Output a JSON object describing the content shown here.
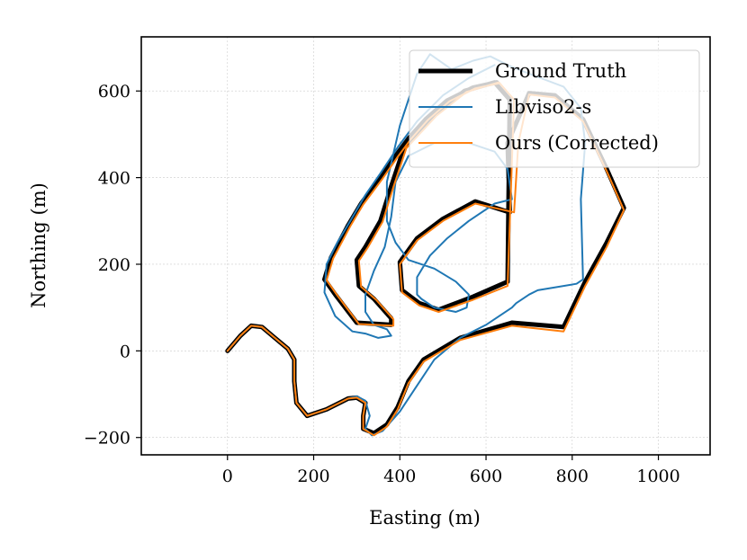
{
  "chart_data": {
    "type": "line",
    "title": "",
    "xlabel": "Easting (m)",
    "ylabel": "Northing (m)",
    "xlim": [
      -200,
      1120
    ],
    "ylim": [
      -240,
      725
    ],
    "xticks": [
      0,
      200,
      400,
      600,
      800,
      1000
    ],
    "yticks": [
      -200,
      0,
      200,
      400,
      600
    ],
    "xtick_labels": [
      "0",
      "200",
      "400",
      "600",
      "800",
      "1000"
    ],
    "ytick_labels": [
      "−200",
      "0",
      "200",
      "400",
      "600"
    ],
    "grid": true,
    "legend_position": "top-right",
    "series": [
      {
        "name": "Ground Truth",
        "color": "#000000",
        "points": [
          [
            0,
            0
          ],
          [
            30,
            35
          ],
          [
            55,
            58
          ],
          [
            80,
            55
          ],
          [
            110,
            30
          ],
          [
            140,
            5
          ],
          [
            155,
            -20
          ],
          [
            155,
            -70
          ],
          [
            160,
            -120
          ],
          [
            185,
            -150
          ],
          [
            230,
            -135
          ],
          [
            280,
            -110
          ],
          [
            300,
            -108
          ],
          [
            320,
            -120
          ],
          [
            315,
            -150
          ],
          [
            315,
            -180
          ],
          [
            340,
            -190
          ],
          [
            370,
            -170
          ],
          [
            395,
            -130
          ],
          [
            420,
            -70
          ],
          [
            455,
            -20
          ],
          [
            540,
            30
          ],
          [
            660,
            65
          ],
          [
            780,
            55
          ],
          [
            830,
            160
          ],
          [
            880,
            250
          ],
          [
            920,
            330
          ],
          [
            880,
            420
          ],
          [
            825,
            535
          ],
          [
            760,
            590
          ],
          [
            700,
            595
          ],
          [
            650,
            480
          ],
          [
            655,
            320
          ],
          [
            575,
            345
          ],
          [
            500,
            305
          ],
          [
            440,
            260
          ],
          [
            400,
            205
          ],
          [
            405,
            140
          ],
          [
            445,
            110
          ],
          [
            490,
            95
          ],
          [
            570,
            125
          ],
          [
            650,
            160
          ],
          [
            655,
            580
          ],
          [
            620,
            620
          ],
          [
            550,
            600
          ],
          [
            480,
            545
          ],
          [
            410,
            470
          ],
          [
            380,
            380
          ],
          [
            355,
            300
          ],
          [
            320,
            240
          ],
          [
            300,
            210
          ],
          [
            305,
            150
          ],
          [
            340,
            120
          ],
          [
            380,
            75
          ],
          [
            380,
            60
          ],
          [
            300,
            65
          ],
          [
            250,
            130
          ],
          [
            225,
            165
          ],
          [
            240,
            215
          ],
          [
            280,
            290
          ],
          [
            310,
            340
          ],
          [
            355,
            400
          ],
          [
            390,
            450
          ],
          [
            420,
            490
          ],
          [
            460,
            535
          ],
          [
            510,
            578
          ],
          [
            570,
            608
          ],
          [
            625,
            620
          ]
        ]
      },
      {
        "name": "Libviso2-s",
        "color": "#1f77b4",
        "points": [
          [
            0,
            0
          ],
          [
            30,
            35
          ],
          [
            55,
            58
          ],
          [
            80,
            55
          ],
          [
            110,
            30
          ],
          [
            140,
            5
          ],
          [
            155,
            -20
          ],
          [
            155,
            -70
          ],
          [
            160,
            -120
          ],
          [
            185,
            -150
          ],
          [
            230,
            -135
          ],
          [
            280,
            -110
          ],
          [
            300,
            -105
          ],
          [
            320,
            -115
          ],
          [
            330,
            -150
          ],
          [
            320,
            -180
          ],
          [
            335,
            -195
          ],
          [
            360,
            -185
          ],
          [
            400,
            -140
          ],
          [
            440,
            -80
          ],
          [
            480,
            -20
          ],
          [
            540,
            30
          ],
          [
            600,
            60
          ],
          [
            660,
            100
          ],
          [
            670,
            110
          ],
          [
            700,
            130
          ],
          [
            720,
            140
          ],
          [
            810,
            155
          ],
          [
            825,
            165
          ],
          [
            820,
            350
          ],
          [
            830,
            480
          ],
          [
            820,
            560
          ],
          [
            780,
            610
          ],
          [
            700,
            640
          ],
          [
            650,
            660
          ],
          [
            610,
            680
          ],
          [
            570,
            670
          ],
          [
            520,
            650
          ],
          [
            470,
            685
          ],
          [
            440,
            640
          ],
          [
            400,
            520
          ],
          [
            370,
            390
          ],
          [
            370,
            300
          ],
          [
            390,
            250
          ],
          [
            420,
            210
          ],
          [
            480,
            190
          ],
          [
            530,
            160
          ],
          [
            560,
            130
          ],
          [
            555,
            100
          ],
          [
            530,
            90
          ],
          [
            480,
            100
          ],
          [
            450,
            120
          ],
          [
            440,
            130
          ],
          [
            440,
            170
          ],
          [
            470,
            220
          ],
          [
            510,
            260
          ],
          [
            560,
            300
          ],
          [
            620,
            340
          ],
          [
            660,
            350
          ],
          [
            650,
            420
          ],
          [
            620,
            460
          ],
          [
            560,
            480
          ],
          [
            480,
            480
          ],
          [
            420,
            450
          ],
          [
            390,
            390
          ],
          [
            380,
            310
          ],
          [
            365,
            240
          ],
          [
            340,
            185
          ],
          [
            320,
            130
          ],
          [
            320,
            90
          ],
          [
            340,
            60
          ],
          [
            370,
            50
          ],
          [
            380,
            35
          ],
          [
            350,
            30
          ],
          [
            320,
            40
          ],
          [
            290,
            45
          ],
          [
            250,
            80
          ],
          [
            225,
            135
          ],
          [
            230,
            200
          ],
          [
            255,
            250
          ],
          [
            285,
            300
          ],
          [
            320,
            360
          ],
          [
            355,
            410
          ],
          [
            395,
            470
          ],
          [
            440,
            530
          ],
          [
            500,
            590
          ],
          [
            560,
            630
          ],
          [
            620,
            660
          ]
        ]
      },
      {
        "name": "Ours (Corrected)",
        "color": "#ff7f0e",
        "points": [
          [
            0,
            0
          ],
          [
            30,
            35
          ],
          [
            55,
            58
          ],
          [
            80,
            55
          ],
          [
            110,
            30
          ],
          [
            140,
            5
          ],
          [
            155,
            -20
          ],
          [
            155,
            -70
          ],
          [
            160,
            -120
          ],
          [
            185,
            -150
          ],
          [
            230,
            -135
          ],
          [
            280,
            -110
          ],
          [
            300,
            -108
          ],
          [
            320,
            -120
          ],
          [
            315,
            -150
          ],
          [
            315,
            -180
          ],
          [
            340,
            -195
          ],
          [
            370,
            -175
          ],
          [
            395,
            -135
          ],
          [
            420,
            -75
          ],
          [
            455,
            -25
          ],
          [
            540,
            25
          ],
          [
            660,
            58
          ],
          [
            780,
            45
          ],
          [
            830,
            150
          ],
          [
            880,
            240
          ],
          [
            920,
            325
          ],
          [
            880,
            415
          ],
          [
            825,
            530
          ],
          [
            760,
            585
          ],
          [
            700,
            592
          ],
          [
            675,
            480
          ],
          [
            665,
            320
          ],
          [
            575,
            340
          ],
          [
            500,
            300
          ],
          [
            440,
            255
          ],
          [
            400,
            200
          ],
          [
            405,
            135
          ],
          [
            445,
            105
          ],
          [
            490,
            90
          ],
          [
            570,
            118
          ],
          [
            650,
            150
          ],
          [
            665,
            580
          ],
          [
            630,
            620
          ],
          [
            555,
            598
          ],
          [
            485,
            543
          ],
          [
            415,
            468
          ],
          [
            385,
            378
          ],
          [
            360,
            298
          ],
          [
            325,
            238
          ],
          [
            305,
            208
          ],
          [
            310,
            148
          ],
          [
            345,
            118
          ],
          [
            385,
            73
          ],
          [
            385,
            58
          ],
          [
            305,
            62
          ],
          [
            255,
            128
          ],
          [
            230,
            163
          ],
          [
            245,
            213
          ],
          [
            285,
            288
          ],
          [
            315,
            338
          ],
          [
            360,
            398
          ],
          [
            395,
            448
          ],
          [
            425,
            488
          ],
          [
            465,
            533
          ],
          [
            515,
            576
          ],
          [
            575,
            606
          ],
          [
            630,
            618
          ]
        ]
      }
    ]
  }
}
